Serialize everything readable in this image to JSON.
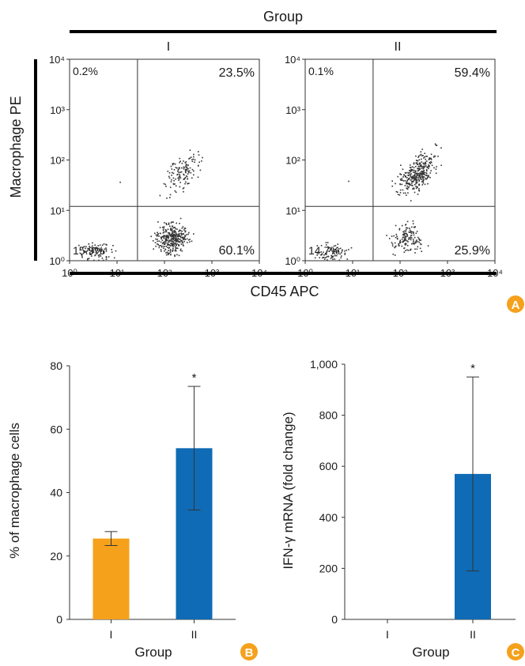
{
  "chart_data": [
    {
      "type": "scatter",
      "panel": "A",
      "title": "Group",
      "xlabel": "CD45 APC",
      "ylabel": "Macrophage PE",
      "axis_scale": "log",
      "xlim": [
        1,
        10000
      ],
      "ylim": [
        1,
        10000
      ],
      "tick_labels": [
        "10⁰",
        "10¹",
        "10²",
        "10³",
        "10⁴"
      ],
      "gate": {
        "x": 27,
        "y": 12
      },
      "subplots": [
        {
          "name": "I",
          "quadrants": {
            "top_left": "0.2%",
            "top_right": "23.5%",
            "bottom_left": "15.9%",
            "bottom_right": "60.1%"
          }
        },
        {
          "name": "II",
          "quadrants": {
            "top_left": "0.1%",
            "top_right": "59.4%",
            "bottom_left": "14.7%",
            "bottom_right": "25.9%"
          }
        }
      ]
    },
    {
      "type": "bar",
      "panel": "B",
      "categories": [
        "I",
        "II"
      ],
      "values": [
        25.5,
        54
      ],
      "errors": [
        2.2,
        19.5
      ],
      "significance": [
        "",
        "*"
      ],
      "colors": [
        "#f5a11c",
        "#0f6bb5"
      ],
      "xlabel": "Group",
      "ylabel": "% of macrophage cells",
      "ylim": [
        0,
        80
      ],
      "yticks": [
        "0",
        "20",
        "40",
        "60",
        "80"
      ]
    },
    {
      "type": "bar",
      "panel": "C",
      "categories": [
        "I",
        "II"
      ],
      "values": [
        0,
        570
      ],
      "errors": [
        0,
        380
      ],
      "significance": [
        "",
        "*"
      ],
      "colors": [
        "#f5a11c",
        "#0f6bb5"
      ],
      "xlabel": "Group",
      "ylabel": "IFN-γ mRNA (fold change)",
      "ylim": [
        0,
        1000
      ],
      "yticks": [
        "0",
        "200",
        "400",
        "600",
        "800",
        "1,000"
      ]
    }
  ],
  "panel_badges": {
    "a": "A",
    "b": "B",
    "c": "C"
  },
  "badge_color": "#f5a11c"
}
